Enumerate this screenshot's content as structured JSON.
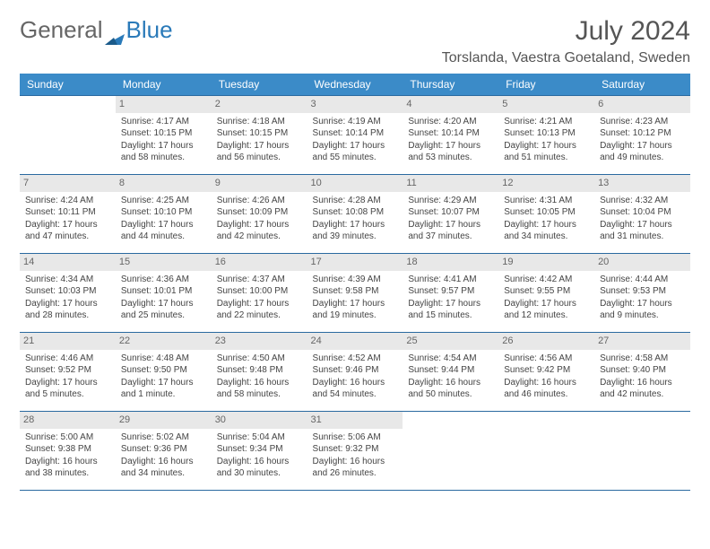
{
  "logo": {
    "text1": "General",
    "text2": "Blue"
  },
  "title": "July 2024",
  "location": "Torslanda, Vaestra Goetaland, Sweden",
  "colors": {
    "header_bg": "#3b8bc8",
    "header_text": "#ffffff",
    "border": "#2a6aa0",
    "daynum_bg": "#e8e8e8",
    "text": "#444444",
    "logo_blue": "#2a7ab9"
  },
  "weekdays": [
    "Sunday",
    "Monday",
    "Tuesday",
    "Wednesday",
    "Thursday",
    "Friday",
    "Saturday"
  ],
  "weeks": [
    [
      {
        "day": "",
        "sunrise": "",
        "sunset": "",
        "daylight": ""
      },
      {
        "day": "1",
        "sunrise": "Sunrise: 4:17 AM",
        "sunset": "Sunset: 10:15 PM",
        "daylight": "Daylight: 17 hours and 58 minutes."
      },
      {
        "day": "2",
        "sunrise": "Sunrise: 4:18 AM",
        "sunset": "Sunset: 10:15 PM",
        "daylight": "Daylight: 17 hours and 56 minutes."
      },
      {
        "day": "3",
        "sunrise": "Sunrise: 4:19 AM",
        "sunset": "Sunset: 10:14 PM",
        "daylight": "Daylight: 17 hours and 55 minutes."
      },
      {
        "day": "4",
        "sunrise": "Sunrise: 4:20 AM",
        "sunset": "Sunset: 10:14 PM",
        "daylight": "Daylight: 17 hours and 53 minutes."
      },
      {
        "day": "5",
        "sunrise": "Sunrise: 4:21 AM",
        "sunset": "Sunset: 10:13 PM",
        "daylight": "Daylight: 17 hours and 51 minutes."
      },
      {
        "day": "6",
        "sunrise": "Sunrise: 4:23 AM",
        "sunset": "Sunset: 10:12 PM",
        "daylight": "Daylight: 17 hours and 49 minutes."
      }
    ],
    [
      {
        "day": "7",
        "sunrise": "Sunrise: 4:24 AM",
        "sunset": "Sunset: 10:11 PM",
        "daylight": "Daylight: 17 hours and 47 minutes."
      },
      {
        "day": "8",
        "sunrise": "Sunrise: 4:25 AM",
        "sunset": "Sunset: 10:10 PM",
        "daylight": "Daylight: 17 hours and 44 minutes."
      },
      {
        "day": "9",
        "sunrise": "Sunrise: 4:26 AM",
        "sunset": "Sunset: 10:09 PM",
        "daylight": "Daylight: 17 hours and 42 minutes."
      },
      {
        "day": "10",
        "sunrise": "Sunrise: 4:28 AM",
        "sunset": "Sunset: 10:08 PM",
        "daylight": "Daylight: 17 hours and 39 minutes."
      },
      {
        "day": "11",
        "sunrise": "Sunrise: 4:29 AM",
        "sunset": "Sunset: 10:07 PM",
        "daylight": "Daylight: 17 hours and 37 minutes."
      },
      {
        "day": "12",
        "sunrise": "Sunrise: 4:31 AM",
        "sunset": "Sunset: 10:05 PM",
        "daylight": "Daylight: 17 hours and 34 minutes."
      },
      {
        "day": "13",
        "sunrise": "Sunrise: 4:32 AM",
        "sunset": "Sunset: 10:04 PM",
        "daylight": "Daylight: 17 hours and 31 minutes."
      }
    ],
    [
      {
        "day": "14",
        "sunrise": "Sunrise: 4:34 AM",
        "sunset": "Sunset: 10:03 PM",
        "daylight": "Daylight: 17 hours and 28 minutes."
      },
      {
        "day": "15",
        "sunrise": "Sunrise: 4:36 AM",
        "sunset": "Sunset: 10:01 PM",
        "daylight": "Daylight: 17 hours and 25 minutes."
      },
      {
        "day": "16",
        "sunrise": "Sunrise: 4:37 AM",
        "sunset": "Sunset: 10:00 PM",
        "daylight": "Daylight: 17 hours and 22 minutes."
      },
      {
        "day": "17",
        "sunrise": "Sunrise: 4:39 AM",
        "sunset": "Sunset: 9:58 PM",
        "daylight": "Daylight: 17 hours and 19 minutes."
      },
      {
        "day": "18",
        "sunrise": "Sunrise: 4:41 AM",
        "sunset": "Sunset: 9:57 PM",
        "daylight": "Daylight: 17 hours and 15 minutes."
      },
      {
        "day": "19",
        "sunrise": "Sunrise: 4:42 AM",
        "sunset": "Sunset: 9:55 PM",
        "daylight": "Daylight: 17 hours and 12 minutes."
      },
      {
        "day": "20",
        "sunrise": "Sunrise: 4:44 AM",
        "sunset": "Sunset: 9:53 PM",
        "daylight": "Daylight: 17 hours and 9 minutes."
      }
    ],
    [
      {
        "day": "21",
        "sunrise": "Sunrise: 4:46 AM",
        "sunset": "Sunset: 9:52 PM",
        "daylight": "Daylight: 17 hours and 5 minutes."
      },
      {
        "day": "22",
        "sunrise": "Sunrise: 4:48 AM",
        "sunset": "Sunset: 9:50 PM",
        "daylight": "Daylight: 17 hours and 1 minute."
      },
      {
        "day": "23",
        "sunrise": "Sunrise: 4:50 AM",
        "sunset": "Sunset: 9:48 PM",
        "daylight": "Daylight: 16 hours and 58 minutes."
      },
      {
        "day": "24",
        "sunrise": "Sunrise: 4:52 AM",
        "sunset": "Sunset: 9:46 PM",
        "daylight": "Daylight: 16 hours and 54 minutes."
      },
      {
        "day": "25",
        "sunrise": "Sunrise: 4:54 AM",
        "sunset": "Sunset: 9:44 PM",
        "daylight": "Daylight: 16 hours and 50 minutes."
      },
      {
        "day": "26",
        "sunrise": "Sunrise: 4:56 AM",
        "sunset": "Sunset: 9:42 PM",
        "daylight": "Daylight: 16 hours and 46 minutes."
      },
      {
        "day": "27",
        "sunrise": "Sunrise: 4:58 AM",
        "sunset": "Sunset: 9:40 PM",
        "daylight": "Daylight: 16 hours and 42 minutes."
      }
    ],
    [
      {
        "day": "28",
        "sunrise": "Sunrise: 5:00 AM",
        "sunset": "Sunset: 9:38 PM",
        "daylight": "Daylight: 16 hours and 38 minutes."
      },
      {
        "day": "29",
        "sunrise": "Sunrise: 5:02 AM",
        "sunset": "Sunset: 9:36 PM",
        "daylight": "Daylight: 16 hours and 34 minutes."
      },
      {
        "day": "30",
        "sunrise": "Sunrise: 5:04 AM",
        "sunset": "Sunset: 9:34 PM",
        "daylight": "Daylight: 16 hours and 30 minutes."
      },
      {
        "day": "31",
        "sunrise": "Sunrise: 5:06 AM",
        "sunset": "Sunset: 9:32 PM",
        "daylight": "Daylight: 16 hours and 26 minutes."
      },
      {
        "day": "",
        "sunrise": "",
        "sunset": "",
        "daylight": ""
      },
      {
        "day": "",
        "sunrise": "",
        "sunset": "",
        "daylight": ""
      },
      {
        "day": "",
        "sunrise": "",
        "sunset": "",
        "daylight": ""
      }
    ]
  ]
}
